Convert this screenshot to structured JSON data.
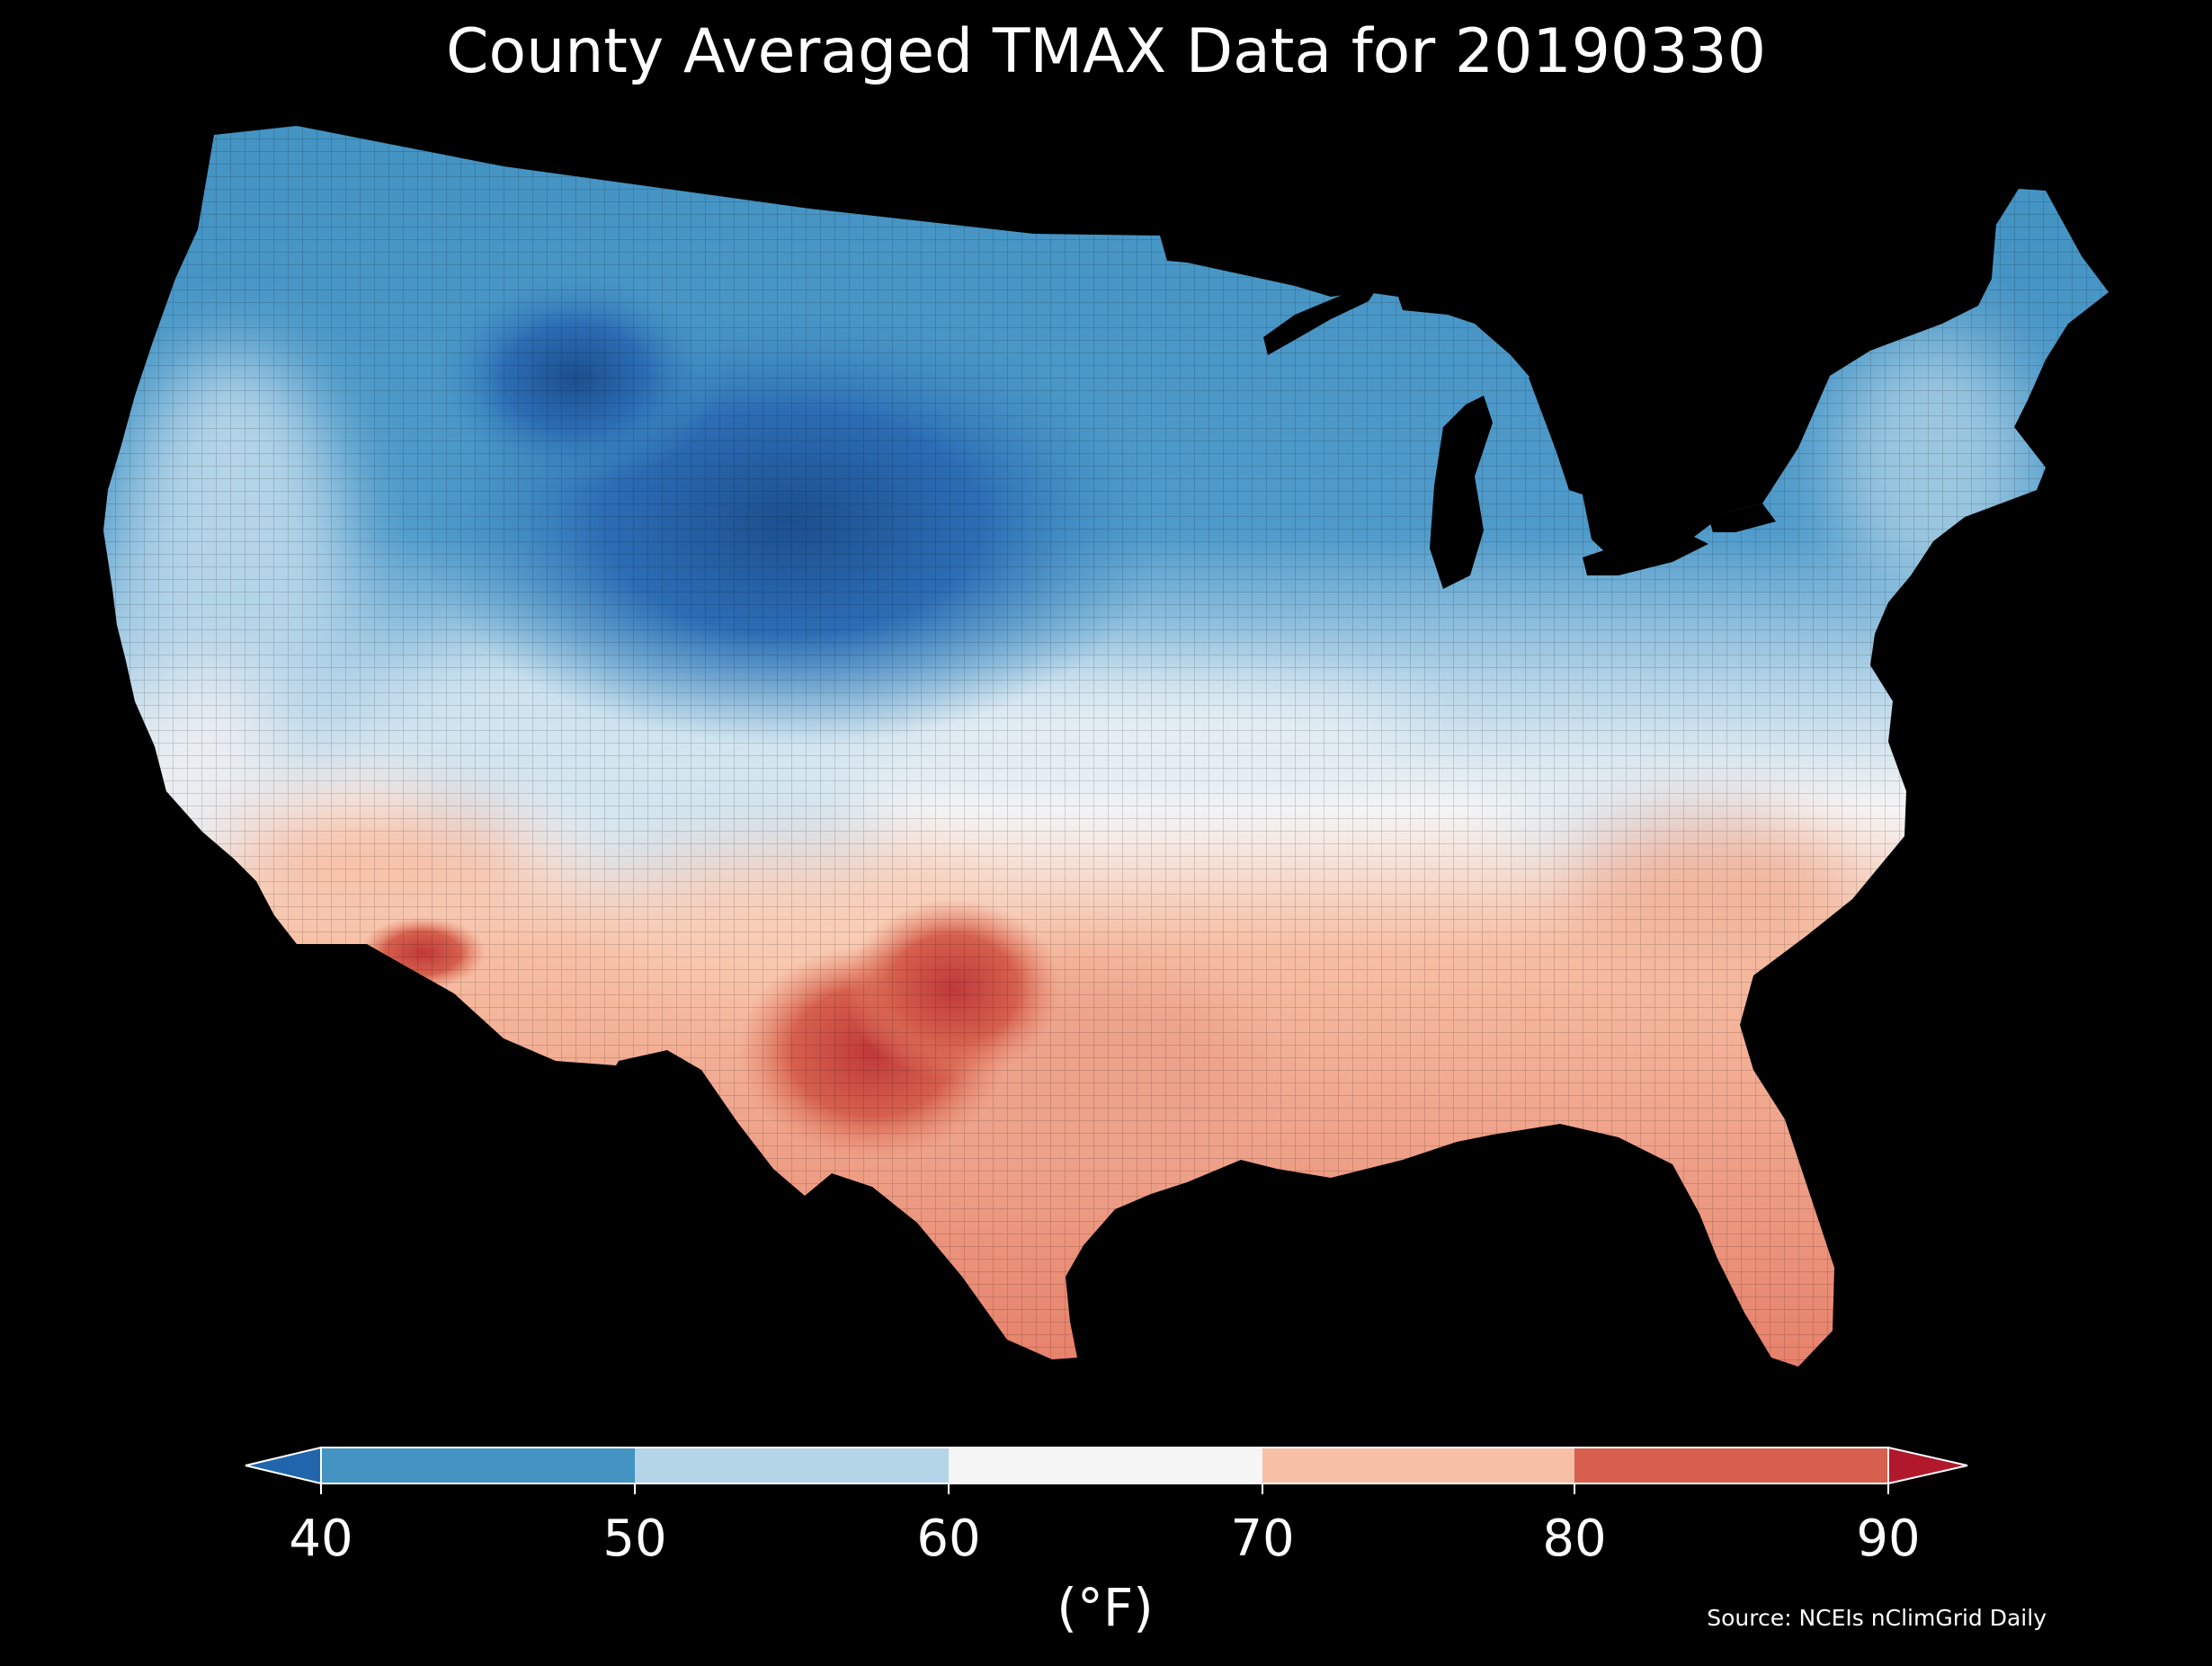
{
  "title": "County Averaged TMAX Data for 20190330",
  "source": "Source: NCEIs nClimGrid Daily",
  "colorbar": {
    "label": "(°F)",
    "ticks": [
      "40",
      "50",
      "60",
      "70",
      "80",
      "90"
    ],
    "bins": [
      {
        "from": 40,
        "to": 50,
        "color": "#4393c3"
      },
      {
        "from": 50,
        "to": 60,
        "color": "#b4d4e8"
      },
      {
        "from": 60,
        "to": 70,
        "color": "#f5f5f5"
      },
      {
        "from": 70,
        "to": 80,
        "color": "#f7bfa4"
      },
      {
        "from": 80,
        "to": 90,
        "color": "#d6604d"
      }
    ],
    "under_color": "#2166ac",
    "over_color": "#b2182b"
  },
  "map": {
    "region": "contiguous-united-states",
    "unit": "county",
    "variable": "TMAX",
    "date": "20190330",
    "background_color": "#000000",
    "border_color": "#000000"
  }
}
